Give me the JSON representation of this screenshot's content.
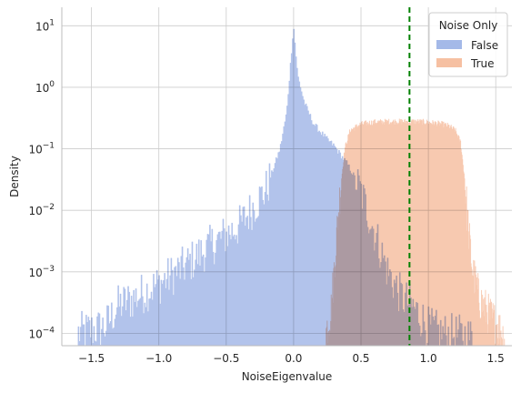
{
  "chart_data": {
    "type": "histogram",
    "xlabel": "NoiseEigenvalue",
    "ylabel": "Density",
    "xlim": [
      -1.72,
      1.62
    ],
    "ylim_log10": [
      -4.2,
      1.3
    ],
    "yscale": "log",
    "x_ticks": [
      -1.5,
      -1.0,
      -0.5,
      0.0,
      0.5,
      1.0,
      1.5
    ],
    "x_tick_labels": [
      "−1.5",
      "−1.0",
      "−0.5",
      "0.0",
      "0.5",
      "1.0",
      "1.5"
    ],
    "y_ticks": [
      -4,
      -3,
      -2,
      -1,
      0,
      1
    ],
    "grid": true,
    "threshold_line": {
      "x": 0.86,
      "color": "#008000",
      "style": "dashed"
    },
    "legend": {
      "title": "Noise Only",
      "placement": "top-right",
      "entries": [
        {
          "label": "False",
          "color": "#a4b9e8"
        },
        {
          "label": "True",
          "color": "#f6c0a2"
        }
      ]
    },
    "series": [
      {
        "name": "False",
        "color": "#a4b9e8",
        "range": [
          -1.6,
          1.35
        ],
        "profile_log10": [
          [
            -1.6,
            -4.0
          ],
          [
            -1.4,
            -3.9
          ],
          [
            -1.3,
            -3.55
          ],
          [
            -1.2,
            -3.45
          ],
          [
            -1.0,
            -3.2
          ],
          [
            -0.8,
            -2.9
          ],
          [
            -0.6,
            -2.55
          ],
          [
            -0.4,
            -2.25
          ],
          [
            -0.3,
            -1.95
          ],
          [
            -0.2,
            -1.65
          ],
          [
            -0.1,
            -1.0
          ],
          [
            -0.05,
            -0.4
          ],
          [
            0.0,
            1.0
          ],
          [
            0.03,
            0.2
          ],
          [
            0.08,
            -0.25
          ],
          [
            0.15,
            -0.6
          ],
          [
            0.25,
            -0.85
          ],
          [
            0.3,
            -0.95
          ],
          [
            0.4,
            -1.25
          ],
          [
            0.45,
            -1.45
          ],
          [
            0.5,
            -1.7
          ],
          [
            0.6,
            -2.35
          ],
          [
            0.7,
            -3.0
          ],
          [
            0.8,
            -3.4
          ],
          [
            0.9,
            -3.6
          ],
          [
            1.0,
            -3.9
          ],
          [
            1.1,
            -4.0
          ],
          [
            1.3,
            -4.05
          ],
          [
            1.35,
            -4.1
          ]
        ]
      },
      {
        "name": "True",
        "color": "#f6c0a2",
        "range": [
          0.24,
          1.57
        ],
        "profile_log10": [
          [
            0.24,
            -4.0
          ],
          [
            0.28,
            -3.6
          ],
          [
            0.32,
            -2.4
          ],
          [
            0.35,
            -1.6
          ],
          [
            0.38,
            -1.0
          ],
          [
            0.42,
            -0.7
          ],
          [
            0.5,
            -0.6
          ],
          [
            0.6,
            -0.57
          ],
          [
            0.7,
            -0.56
          ],
          [
            0.8,
            -0.56
          ],
          [
            0.9,
            -0.56
          ],
          [
            1.0,
            -0.57
          ],
          [
            1.1,
            -0.6
          ],
          [
            1.15,
            -0.63
          ],
          [
            1.2,
            -0.7
          ],
          [
            1.24,
            -0.9
          ],
          [
            1.27,
            -1.5
          ],
          [
            1.3,
            -2.4
          ],
          [
            1.33,
            -3.0
          ],
          [
            1.38,
            -3.45
          ],
          [
            1.45,
            -3.7
          ],
          [
            1.52,
            -3.9
          ],
          [
            1.57,
            -4.1
          ]
        ]
      }
    ]
  }
}
